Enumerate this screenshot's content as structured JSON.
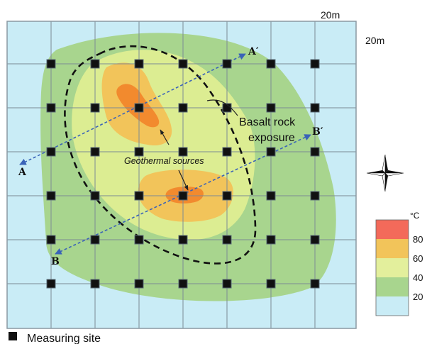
{
  "scale": {
    "horizontal": "20m",
    "vertical": "20m"
  },
  "labels": {
    "basalt_line1": "Basalt rock",
    "basalt_line2": "exposure",
    "geothermal": "Geothermal  sources",
    "A": "A",
    "A_prime": "A′",
    "B": "B",
    "B_prime": "B′"
  },
  "legend": {
    "unit": "°C",
    "ticks": [
      "80",
      "60",
      "40",
      "20"
    ],
    "colors": [
      "#f36a5a",
      "#f2c45a",
      "#e3ef9c",
      "#a8d58e",
      "#c9ecf6"
    ]
  },
  "key": {
    "label": "Measuring site"
  },
  "colors": {
    "water_background": "#c9ecf6",
    "zone_20": "#a8d58e",
    "zone_40": "#dced92",
    "zone_60": "#f2c45a",
    "zone_80": "#f28a2e",
    "grid": "#7c8a94",
    "marker": "#111111",
    "profile_line": "#3a63b8"
  },
  "icons": {
    "north": "compass-rose-icon",
    "site": "measuring-site-icon"
  }
}
